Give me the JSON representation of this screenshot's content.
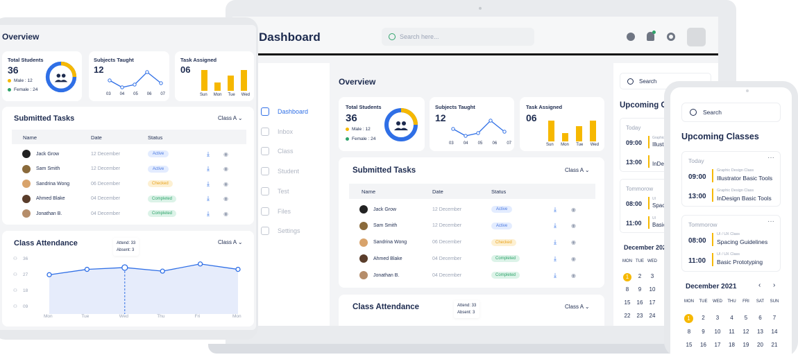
{
  "laptop": {
    "title": "Dashboard",
    "search_placeholder": "Search here...",
    "sidebar": [
      {
        "label": "Dashboard",
        "icon": "grid-icon"
      },
      {
        "label": "Inbox",
        "icon": "inbox-icon"
      },
      {
        "label": "Class",
        "icon": "bank-icon"
      },
      {
        "label": "Student",
        "icon": "people-icon"
      },
      {
        "label": "Test",
        "icon": "document-icon"
      },
      {
        "label": "Files",
        "icon": "folder-icon"
      },
      {
        "label": "Settings",
        "icon": "gear-icon"
      }
    ],
    "overview_title": "Overview",
    "total_students_label": "Total Students",
    "total_students_value": "36",
    "male_label": "Male : 12",
    "female_label": "Female : 24",
    "subjects_taught_label": "Subjects Taught",
    "subjects_taught_value": "12",
    "subjects_ticks": [
      "03",
      "04",
      "05",
      "06",
      "07"
    ],
    "task_assigned_label": "Task Assigned",
    "task_assigned_value": "06",
    "task_days": [
      "Sun",
      "Mon",
      "Tue",
      "Wed"
    ],
    "submitted_title": "Submitted Tasks",
    "class_select": "Class A",
    "cols": [
      "Name",
      "Date",
      "Status"
    ],
    "tasks": [
      {
        "name": "Jack Grow",
        "date": "12 December",
        "status": "Active"
      },
      {
        "name": "Sam Smith",
        "date": "12 December",
        "status": "Active"
      },
      {
        "name": "Sandrina Wong",
        "date": "06 December",
        "status": "Checked"
      },
      {
        "name": "Ahmed Blake",
        "date": "04 December",
        "status": "Completed"
      },
      {
        "name": "Jonathan B.",
        "date": "04 December",
        "status": "Completed"
      }
    ],
    "attendance_title": "Class Attendance",
    "attend_label": "Attend: 33",
    "absent_label": "Absent: 3",
    "right_search": "Search",
    "upcoming_title": "Upcoming C",
    "today": "Today",
    "tomorrow": "Tommorow",
    "slots": [
      {
        "time": "09:00",
        "cat": "Graphic",
        "name": "Illustr"
      },
      {
        "time": "13:00",
        "cat": "",
        "name": "InDesi"
      },
      {
        "time": "08:00",
        "cat": "UI",
        "name": "Spac"
      },
      {
        "time": "11:00",
        "cat": "UI",
        "name": "Basic"
      }
    ],
    "december": "December 202"
  },
  "tablet": {
    "overview_title": "Overview",
    "total_students_label": "Total Students",
    "total_students_value": "36",
    "male_label": "Male : 12",
    "female_label": "Female : 24",
    "subjects_taught_label": "Subjects Taught",
    "subjects_taught_value": "12",
    "subjects_ticks": [
      "03",
      "04",
      "05",
      "06",
      "07"
    ],
    "task_assigned_label": "Task Assigned",
    "task_assigned_value": "06",
    "task_days": [
      "Sun",
      "Mon",
      "Tue",
      "Wed"
    ],
    "submitted_title": "Submitted Tasks",
    "class_select": "Class A",
    "cols": [
      "Name",
      "Date",
      "Status"
    ],
    "tasks": [
      {
        "name": "Jack Grow",
        "date": "12 December",
        "status": "Active"
      },
      {
        "name": "Sam Smith",
        "date": "12 December",
        "status": "Active"
      },
      {
        "name": "Sandrina Wong",
        "date": "06 December",
        "status": "Checked"
      },
      {
        "name": "Ahmed Blake",
        "date": "04 December",
        "status": "Completed"
      },
      {
        "name": "Jonathan B.",
        "date": "04 December",
        "status": "Completed"
      }
    ],
    "attendance_title": "Class Attendance",
    "attend_label": "Attend: 33",
    "absent_label": "Absent: 3",
    "y_ticks": [
      "36",
      "27",
      "18",
      "09"
    ],
    "x_days": [
      "Mon",
      "Tue",
      "Wed",
      "Thu",
      "Fri",
      "Mon"
    ],
    "attendance_values": [
      27,
      30,
      31,
      29,
      33,
      30
    ]
  },
  "phone": {
    "search": "Search",
    "upcoming_title": "Upcoming Classes",
    "today": "Today",
    "tomorrow": "Tommorow",
    "today_slots": [
      {
        "time": "09:00",
        "cat": "Graphic Design Class",
        "name": "Illustrator Basic Tools"
      },
      {
        "time": "13:00",
        "cat": "Graphic Design Class",
        "name": "InDesign Basic Tools"
      }
    ],
    "tomorrow_slots": [
      {
        "time": "08:00",
        "cat": "UI / UX Class",
        "name": "Spacing Guidelines"
      },
      {
        "time": "11:00",
        "cat": "UI / UX Class",
        "name": "Basic Prototyping"
      }
    ],
    "december": "December 2021",
    "weekdays": [
      "MON",
      "TUE",
      "WED",
      "THU",
      "FRI",
      "SAT",
      "SUN"
    ],
    "week1": [
      "1",
      "2",
      "3",
      "4",
      "5",
      "6",
      "7"
    ]
  },
  "colors": {
    "accent": "#2f6fe6",
    "yellow": "#f6b800",
    "green": "#2ea36a",
    "navy": "#1d2b4f"
  }
}
